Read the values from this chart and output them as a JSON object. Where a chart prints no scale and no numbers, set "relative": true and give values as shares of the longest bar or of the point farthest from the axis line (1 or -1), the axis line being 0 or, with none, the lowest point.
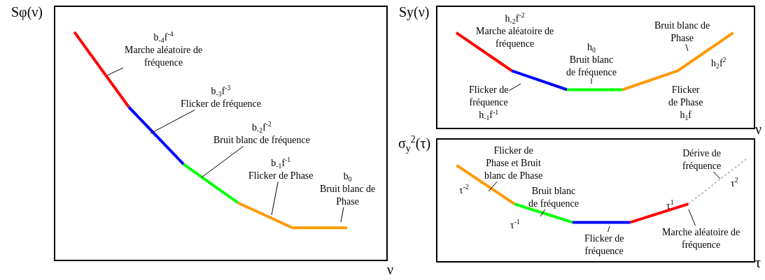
{
  "chart_data": [
    {
      "type": "line",
      "relative": true,
      "ylabel": "Sφ(ν)",
      "xlabel": "ν",
      "marker": "none",
      "categories": [
        null,
        null,
        null,
        null,
        null,
        null
      ],
      "series": [
        {
          "color": "#ff0000",
          "values": [
            1,
            0.67,
            null,
            null,
            null,
            null
          ]
        },
        {
          "color": "#0000ff",
          "values": [
            null,
            0.67,
            0.42,
            null,
            null,
            null
          ]
        },
        {
          "color": "#00ff00",
          "values": [
            null,
            null,
            0.42,
            0.25,
            null,
            null
          ]
        },
        {
          "color": "#ff9900",
          "values": [
            null,
            null,
            null,
            0.25,
            0.14,
            0.14
          ]
        }
      ],
      "annotations": [
        "b$_{-4}$f$^{-4}$\nMarche aléatoire de\nfréquence",
        "b$_{-3}$f$^{-3}$\nFlicker de fréquence",
        "b$_{-2}$f$^{-2}$\nBruit blanc de fréquence",
        "b$_{-1}$f$^{-1}$\nFlicker de Phase",
        "b$_{0}$\nBruit blanc de\nPhase"
      ]
    },
    {
      "type": "line",
      "relative": true,
      "ylabel": "Sy(ν)",
      "xlabel": "ν",
      "marker": "none",
      "categories": [
        null,
        null,
        null,
        null,
        null,
        null
      ],
      "series": [
        {
          "color": "#ff0000",
          "values": [
            1,
            0.6,
            null,
            null,
            null,
            null
          ]
        },
        {
          "color": "#0000ff",
          "values": [
            null,
            0.6,
            0.4,
            null,
            null,
            null
          ]
        },
        {
          "color": "#00ff00",
          "values": [
            null,
            null,
            0.4,
            0.4,
            null,
            null
          ]
        },
        {
          "color": "#ff9900",
          "values": [
            null,
            null,
            null,
            0.4,
            0.6,
            1
          ]
        }
      ],
      "annotations": [
        "h$_{-2}$f$^{-2}$\nMarche aléatoire de\nfréquence",
        "h$_{0}$\nBruit blanc\nde fréquence",
        "Flicker de\nfréquence\nh$_{-1}$f$^{-1}$",
        "Bruit blanc de\nPhase",
        "h$_{2}$f$^{2}$",
        "Flicker\nde Phase\nh$_{1}$f"
      ]
    },
    {
      "type": "line",
      "relative": true,
      "ylabel": "σ$_{y}$$^{2}$(τ)",
      "xlabel": "τ",
      "marker": "none",
      "categories": [
        null,
        null,
        null,
        null,
        null,
        null
      ],
      "series": [
        {
          "color": "#ff9900",
          "values": [
            0.94,
            0.56,
            null,
            null,
            null,
            null
          ]
        },
        {
          "color": "#00ff00",
          "values": [
            null,
            0.56,
            0.38,
            null,
            null,
            null
          ]
        },
        {
          "color": "#0000ff",
          "values": [
            null,
            null,
            0.38,
            0.38,
            null,
            null
          ]
        },
        {
          "color": "#ff0000",
          "values": [
            null,
            null,
            null,
            0.38,
            0.56,
            null
          ]
        },
        {
          "color": "#bbbbbb",
          "line_style": "dotted",
          "values": [
            null,
            null,
            null,
            null,
            0.56,
            1
          ]
        }
      ],
      "annotations": [
        "Flicker de\nPhase et Bruit\nblanc de Phase",
        "τ$^{-2}$",
        "Bruit blanc\nde fréquence",
        "τ$^{-1}$",
        "Flicker de\nfréquence",
        "τ$^{1}$",
        "Marche aléatoire de\nfréquence",
        "Dérive de\nfréquence",
        "τ$^{2}$"
      ]
    }
  ]
}
